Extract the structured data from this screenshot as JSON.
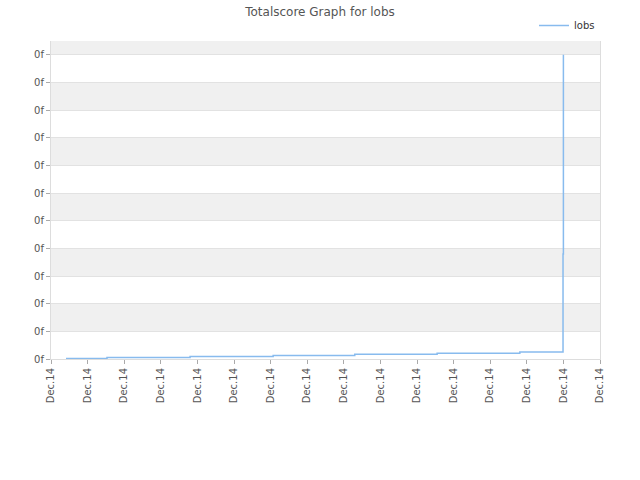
{
  "chart_data": {
    "type": "line",
    "title": "Totalscore Graph for lobs",
    "series": [
      {
        "name": "lobs",
        "color": "#88bbee",
        "line_style": "step",
        "x": [
          0.41,
          1.53,
          3.8,
          6.07,
          8.3,
          10.55,
          12.81,
          13.99,
          14.0
        ],
        "values": [
          0.02,
          0.05,
          0.09,
          0.13,
          0.17,
          0.21,
          0.25,
          3.8,
          11
        ]
      }
    ],
    "xlim": [
      0,
      15
    ],
    "xticks": [
      {
        "value": 0,
        "label": "Dec.14"
      },
      {
        "value": 1,
        "label": "Dec.14"
      },
      {
        "value": 2,
        "label": "Dec.14"
      },
      {
        "value": 3,
        "label": "Dec.14"
      },
      {
        "value": 4,
        "label": "Dec.14"
      },
      {
        "value": 5,
        "label": "Dec.14"
      },
      {
        "value": 6,
        "label": "Dec.14"
      },
      {
        "value": 7,
        "label": "Dec.14"
      },
      {
        "value": 8,
        "label": "Dec.14"
      },
      {
        "value": 9,
        "label": "Dec.14"
      },
      {
        "value": 10,
        "label": "Dec.14"
      },
      {
        "value": 11,
        "label": "Dec.14"
      },
      {
        "value": 12,
        "label": "Dec.14"
      },
      {
        "value": 13,
        "label": "Dec.14"
      },
      {
        "value": 14,
        "label": "Dec.14"
      },
      {
        "value": 15,
        "label": "Dec.14"
      }
    ],
    "ylim": [
      0,
      11.5
    ],
    "yticks": [
      {
        "value": 0,
        "label": "0f"
      },
      {
        "value": 1,
        "label": "0f"
      },
      {
        "value": 2,
        "label": "0f"
      },
      {
        "value": 3,
        "label": "0f"
      },
      {
        "value": 4,
        "label": "0f"
      },
      {
        "value": 5,
        "label": "0f"
      },
      {
        "value": 6,
        "label": "0f"
      },
      {
        "value": 7,
        "label": "0f"
      },
      {
        "value": 8,
        "label": "0f"
      },
      {
        "value": 9,
        "label": "0f"
      },
      {
        "value": 10,
        "label": "0f"
      },
      {
        "value": 11,
        "label": "0f"
      }
    ],
    "grid": true,
    "legend": "top right"
  }
}
